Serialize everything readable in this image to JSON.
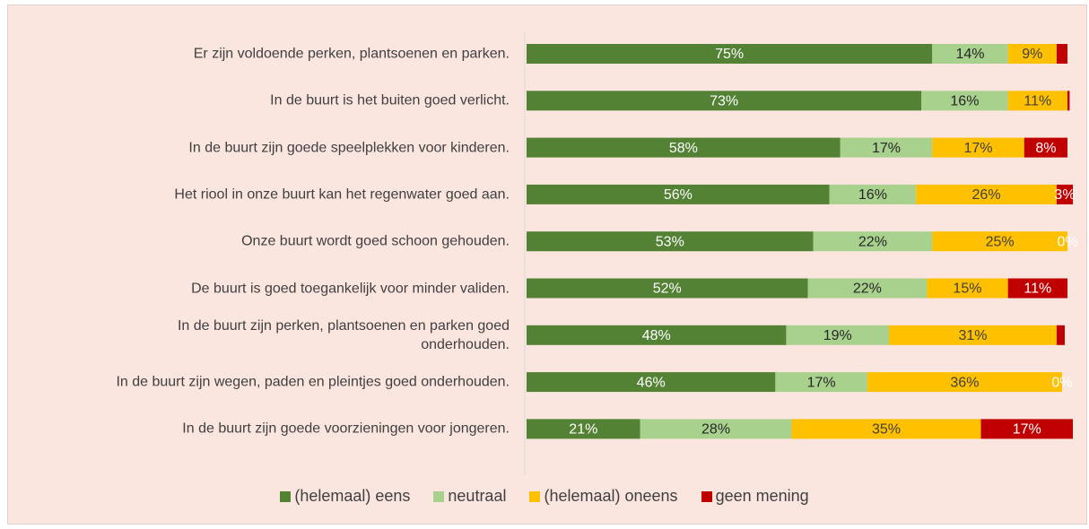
{
  "chart_data": {
    "type": "stacked-barh",
    "categories": [
      "Er zijn voldoende perken, plantsoenen en parken.",
      "In de buurt is het buiten goed verlicht.",
      "In de buurt zijn goede speelplekken voor kinderen.",
      "Het riool in onze buurt kan het regenwater goed aan.",
      "Onze buurt wordt goed schoon gehouden.",
      "De buurt is goed toegankelijk voor minder validen.",
      "In de buurt zijn perken, plantsoenen en parken goed onderhouden.",
      "In de buurt zijn wegen, paden en pleintjes goed onderhouden.",
      "In de buurt zijn goede voorzieningen voor jongeren."
    ],
    "xlim": [
      0,
      100
    ],
    "series": [
      {
        "name": "(helemaal) eens",
        "color": "#548235",
        "label_color": "#ffffff",
        "values": [
          75,
          73,
          58,
          56,
          53,
          52,
          48,
          46,
          21
        ],
        "value_labels": [
          "75%",
          "73%",
          "58%",
          "56%",
          "53%",
          "52%",
          "48%",
          "46%",
          "21%"
        ]
      },
      {
        "name": "neutraal",
        "color": "#a9d18e",
        "label_color": "#262626",
        "values": [
          14,
          16,
          17,
          16,
          22,
          22,
          19,
          17,
          28
        ],
        "value_labels": [
          "14%",
          "16%",
          "17%",
          "16%",
          "22%",
          "22%",
          "19%",
          "17%",
          "28%"
        ]
      },
      {
        "name": "(helemaal) oneens",
        "color": "#ffc000",
        "label_color": "#404040",
        "values": [
          9,
          11,
          17,
          26,
          25,
          15,
          31,
          36,
          35
        ],
        "value_labels": [
          "9%",
          "11%",
          "17%",
          "26%",
          "25%",
          "15%",
          "31%",
          "36%",
          "35%"
        ]
      },
      {
        "name": "geen mening",
        "color": "#c00000",
        "label_color": "#ffffff",
        "values": [
          2,
          0.4,
          8,
          3,
          0,
          11,
          1.5,
          0,
          17
        ],
        "value_labels": [
          null,
          null,
          "8%",
          "3%",
          "0%",
          "11%",
          null,
          "0%",
          "17%"
        ]
      }
    ]
  }
}
